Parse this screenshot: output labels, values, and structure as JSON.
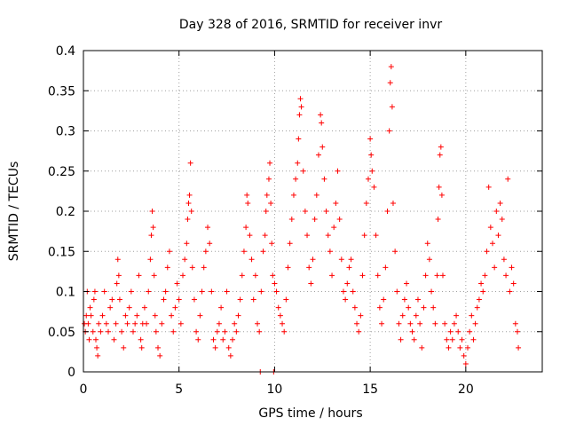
{
  "chart_data": {
    "type": "scatter",
    "title": "Day 328 of 2016, SRMTID for receiver invr",
    "xlabel": "GPS time / hours",
    "ylabel": "SRMTID / TECUs",
    "xlim": [
      0,
      24.0
    ],
    "ylim": [
      0,
      0.4
    ],
    "x_ticks": [
      0,
      5,
      10,
      15,
      20
    ],
    "y_ticks": [
      0,
      0.05,
      0.1,
      0.15,
      0.2,
      0.25,
      0.3,
      0.35,
      0.4
    ],
    "x_tick_labels": [
      "0",
      "5",
      "10",
      "15",
      "20"
    ],
    "y_tick_labels": [
      "0",
      "0.05",
      "0.1",
      "0.15",
      "0.2",
      "0.25",
      "0.3",
      "0.35",
      "0.4"
    ],
    "grid": true,
    "marker": "+",
    "series_color": "#ff0000",
    "series": [
      {
        "name": "SRMTID",
        "points": [
          [
            0.05,
            0.06
          ],
          [
            0.1,
            0.05
          ],
          [
            0.15,
            0.07
          ],
          [
            0.2,
            0.1
          ],
          [
            0.25,
            0.06
          ],
          [
            0.3,
            0.04
          ],
          [
            0.35,
            0.08
          ],
          [
            0.4,
            0.07
          ],
          [
            0.5,
            0.05
          ],
          [
            0.55,
            0.09
          ],
          [
            0.6,
            0.1
          ],
          [
            0.65,
            0.04
          ],
          [
            0.7,
            0.03
          ],
          [
            0.75,
            0.02
          ],
          [
            0.8,
            0.06
          ],
          [
            0.9,
            0.05
          ],
          [
            1.0,
            0.07
          ],
          [
            1.1,
            0.1
          ],
          [
            1.2,
            0.06
          ],
          [
            1.3,
            0.05
          ],
          [
            1.4,
            0.08
          ],
          [
            1.5,
            0.09
          ],
          [
            1.6,
            0.04
          ],
          [
            1.7,
            0.06
          ],
          [
            1.75,
            0.11
          ],
          [
            1.8,
            0.14
          ],
          [
            1.85,
            0.12
          ],
          [
            1.9,
            0.09
          ],
          [
            2.0,
            0.05
          ],
          [
            2.1,
            0.03
          ],
          [
            2.2,
            0.07
          ],
          [
            2.3,
            0.06
          ],
          [
            2.4,
            0.08
          ],
          [
            2.5,
            0.1
          ],
          [
            2.6,
            0.05
          ],
          [
            2.7,
            0.06
          ],
          [
            2.8,
            0.07
          ],
          [
            2.9,
            0.12
          ],
          [
            3.0,
            0.04
          ],
          [
            3.05,
            0.03
          ],
          [
            3.1,
            0.06
          ],
          [
            3.2,
            0.08
          ],
          [
            3.3,
            0.06
          ],
          [
            3.4,
            0.1
          ],
          [
            3.5,
            0.14
          ],
          [
            3.55,
            0.17
          ],
          [
            3.6,
            0.2
          ],
          [
            3.65,
            0.18
          ],
          [
            3.7,
            0.12
          ],
          [
            3.75,
            0.07
          ],
          [
            3.8,
            0.05
          ],
          [
            3.9,
            0.03
          ],
          [
            4.0,
            0.02
          ],
          [
            4.1,
            0.06
          ],
          [
            4.2,
            0.09
          ],
          [
            4.3,
            0.1
          ],
          [
            4.4,
            0.13
          ],
          [
            4.5,
            0.15
          ],
          [
            4.6,
            0.07
          ],
          [
            4.7,
            0.05
          ],
          [
            4.8,
            0.08
          ],
          [
            4.9,
            0.11
          ],
          [
            5.0,
            0.09
          ],
          [
            5.1,
            0.06
          ],
          [
            5.2,
            0.12
          ],
          [
            5.3,
            0.14
          ],
          [
            5.4,
            0.16
          ],
          [
            5.45,
            0.19
          ],
          [
            5.5,
            0.21
          ],
          [
            5.55,
            0.22
          ],
          [
            5.6,
            0.26
          ],
          [
            5.65,
            0.2
          ],
          [
            5.7,
            0.13
          ],
          [
            5.8,
            0.09
          ],
          [
            5.9,
            0.05
          ],
          [
            6.0,
            0.04
          ],
          [
            6.1,
            0.07
          ],
          [
            6.2,
            0.1
          ],
          [
            6.3,
            0.13
          ],
          [
            6.4,
            0.15
          ],
          [
            6.5,
            0.18
          ],
          [
            6.6,
            0.16
          ],
          [
            6.7,
            0.1
          ],
          [
            6.8,
            0.04
          ],
          [
            6.9,
            0.03
          ],
          [
            7.0,
            0.05
          ],
          [
            7.1,
            0.06
          ],
          [
            7.2,
            0.08
          ],
          [
            7.3,
            0.04
          ],
          [
            7.4,
            0.05
          ],
          [
            7.5,
            0.1
          ],
          [
            7.6,
            0.03
          ],
          [
            7.7,
            0.02
          ],
          [
            7.8,
            0.04
          ],
          [
            7.9,
            0.06
          ],
          [
            8.0,
            0.05
          ],
          [
            8.1,
            0.07
          ],
          [
            8.2,
            0.09
          ],
          [
            8.3,
            0.12
          ],
          [
            8.4,
            0.15
          ],
          [
            8.5,
            0.18
          ],
          [
            8.55,
            0.22
          ],
          [
            8.6,
            0.21
          ],
          [
            8.7,
            0.17
          ],
          [
            8.8,
            0.14
          ],
          [
            8.9,
            0.09
          ],
          [
            9.0,
            0.12
          ],
          [
            9.1,
            0.06
          ],
          [
            9.2,
            0.05
          ],
          [
            9.25,
            0.0
          ],
          [
            9.3,
            0.1
          ],
          [
            9.4,
            0.15
          ],
          [
            9.5,
            0.17
          ],
          [
            9.55,
            0.2
          ],
          [
            9.6,
            0.22
          ],
          [
            9.7,
            0.24
          ],
          [
            9.75,
            0.26
          ],
          [
            9.8,
            0.21
          ],
          [
            9.85,
            0.16
          ],
          [
            9.9,
            0.12
          ],
          [
            9.95,
            0.0
          ],
          [
            10.0,
            0.11
          ],
          [
            10.1,
            0.1
          ],
          [
            10.2,
            0.08
          ],
          [
            10.3,
            0.07
          ],
          [
            10.4,
            0.06
          ],
          [
            10.5,
            0.05
          ],
          [
            10.6,
            0.09
          ],
          [
            10.7,
            0.13
          ],
          [
            10.8,
            0.16
          ],
          [
            10.9,
            0.19
          ],
          [
            11.0,
            0.22
          ],
          [
            11.1,
            0.24
          ],
          [
            11.2,
            0.26
          ],
          [
            11.25,
            0.29
          ],
          [
            11.3,
            0.32
          ],
          [
            11.35,
            0.34
          ],
          [
            11.4,
            0.33
          ],
          [
            11.5,
            0.25
          ],
          [
            11.6,
            0.2
          ],
          [
            11.7,
            0.17
          ],
          [
            11.8,
            0.13
          ],
          [
            11.9,
            0.11
          ],
          [
            12.0,
            0.14
          ],
          [
            12.1,
            0.19
          ],
          [
            12.2,
            0.22
          ],
          [
            12.3,
            0.27
          ],
          [
            12.4,
            0.32
          ],
          [
            12.45,
            0.31
          ],
          [
            12.5,
            0.28
          ],
          [
            12.6,
            0.24
          ],
          [
            12.7,
            0.2
          ],
          [
            12.8,
            0.17
          ],
          [
            12.9,
            0.15
          ],
          [
            13.0,
            0.12
          ],
          [
            13.1,
            0.18
          ],
          [
            13.2,
            0.21
          ],
          [
            13.3,
            0.25
          ],
          [
            13.4,
            0.19
          ],
          [
            13.5,
            0.14
          ],
          [
            13.6,
            0.1
          ],
          [
            13.7,
            0.09
          ],
          [
            13.8,
            0.11
          ],
          [
            13.9,
            0.13
          ],
          [
            14.0,
            0.14
          ],
          [
            14.1,
            0.1
          ],
          [
            14.2,
            0.08
          ],
          [
            14.3,
            0.06
          ],
          [
            14.4,
            0.05
          ],
          [
            14.5,
            0.07
          ],
          [
            14.6,
            0.12
          ],
          [
            14.7,
            0.17
          ],
          [
            14.8,
            0.21
          ],
          [
            14.9,
            0.24
          ],
          [
            15.0,
            0.29
          ],
          [
            15.05,
            0.27
          ],
          [
            15.1,
            0.25
          ],
          [
            15.2,
            0.23
          ],
          [
            15.3,
            0.17
          ],
          [
            15.4,
            0.12
          ],
          [
            15.5,
            0.08
          ],
          [
            15.6,
            0.06
          ],
          [
            15.7,
            0.09
          ],
          [
            15.8,
            0.13
          ],
          [
            15.9,
            0.2
          ],
          [
            16.0,
            0.3
          ],
          [
            16.05,
            0.36
          ],
          [
            16.1,
            0.38
          ],
          [
            16.15,
            0.33
          ],
          [
            16.2,
            0.21
          ],
          [
            16.3,
            0.15
          ],
          [
            16.4,
            0.1
          ],
          [
            16.5,
            0.06
          ],
          [
            16.6,
            0.04
          ],
          [
            16.7,
            0.07
          ],
          [
            16.8,
            0.09
          ],
          [
            16.9,
            0.11
          ],
          [
            17.0,
            0.08
          ],
          [
            17.1,
            0.06
          ],
          [
            17.2,
            0.05
          ],
          [
            17.3,
            0.04
          ],
          [
            17.4,
            0.07
          ],
          [
            17.5,
            0.09
          ],
          [
            17.6,
            0.06
          ],
          [
            17.7,
            0.03
          ],
          [
            17.8,
            0.08
          ],
          [
            17.9,
            0.12
          ],
          [
            18.0,
            0.16
          ],
          [
            18.1,
            0.14
          ],
          [
            18.2,
            0.1
          ],
          [
            18.3,
            0.08
          ],
          [
            18.4,
            0.06
          ],
          [
            18.5,
            0.12
          ],
          [
            18.55,
            0.19
          ],
          [
            18.6,
            0.23
          ],
          [
            18.65,
            0.27
          ],
          [
            18.7,
            0.28
          ],
          [
            18.75,
            0.22
          ],
          [
            18.8,
            0.12
          ],
          [
            18.9,
            0.06
          ],
          [
            19.0,
            0.04
          ],
          [
            19.1,
            0.03
          ],
          [
            19.2,
            0.05
          ],
          [
            19.3,
            0.04
          ],
          [
            19.4,
            0.06
          ],
          [
            19.5,
            0.07
          ],
          [
            19.6,
            0.05
          ],
          [
            19.7,
            0.03
          ],
          [
            19.8,
            0.04
          ],
          [
            19.9,
            0.02
          ],
          [
            20.0,
            0.01
          ],
          [
            20.1,
            0.03
          ],
          [
            20.2,
            0.05
          ],
          [
            20.3,
            0.07
          ],
          [
            20.4,
            0.04
          ],
          [
            20.5,
            0.06
          ],
          [
            20.6,
            0.08
          ],
          [
            20.7,
            0.09
          ],
          [
            20.8,
            0.11
          ],
          [
            20.9,
            0.1
          ],
          [
            21.0,
            0.12
          ],
          [
            21.1,
            0.15
          ],
          [
            21.2,
            0.23
          ],
          [
            21.3,
            0.18
          ],
          [
            21.4,
            0.16
          ],
          [
            21.5,
            0.13
          ],
          [
            21.6,
            0.2
          ],
          [
            21.7,
            0.17
          ],
          [
            21.8,
            0.21
          ],
          [
            21.9,
            0.19
          ],
          [
            22.0,
            0.14
          ],
          [
            22.1,
            0.12
          ],
          [
            22.2,
            0.24
          ],
          [
            22.3,
            0.1
          ],
          [
            22.4,
            0.13
          ],
          [
            22.5,
            0.11
          ],
          [
            22.6,
            0.06
          ],
          [
            22.7,
            0.05
          ],
          [
            22.75,
            0.03
          ]
        ]
      }
    ]
  }
}
